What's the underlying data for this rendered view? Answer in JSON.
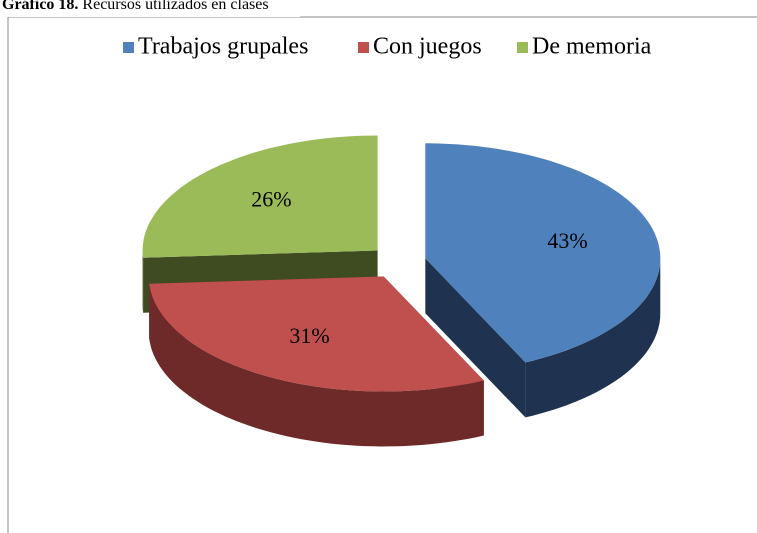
{
  "chart_data": {
    "type": "pie3d",
    "title_label": "Gráfico 18.",
    "title": "Recursos utilizados en clases",
    "categories": [
      "Trabajos grupales",
      "Con juegos",
      "De memoria"
    ],
    "values": [
      43,
      31,
      26
    ],
    "value_labels": [
      "43%",
      "31%",
      "26%"
    ],
    "colors": [
      "#4f81bd",
      "#c0504d",
      "#9bbb59"
    ],
    "side_colors": [
      "#1f3350",
      "#6e2a28",
      "#3f4c22"
    ],
    "legend": "top"
  }
}
